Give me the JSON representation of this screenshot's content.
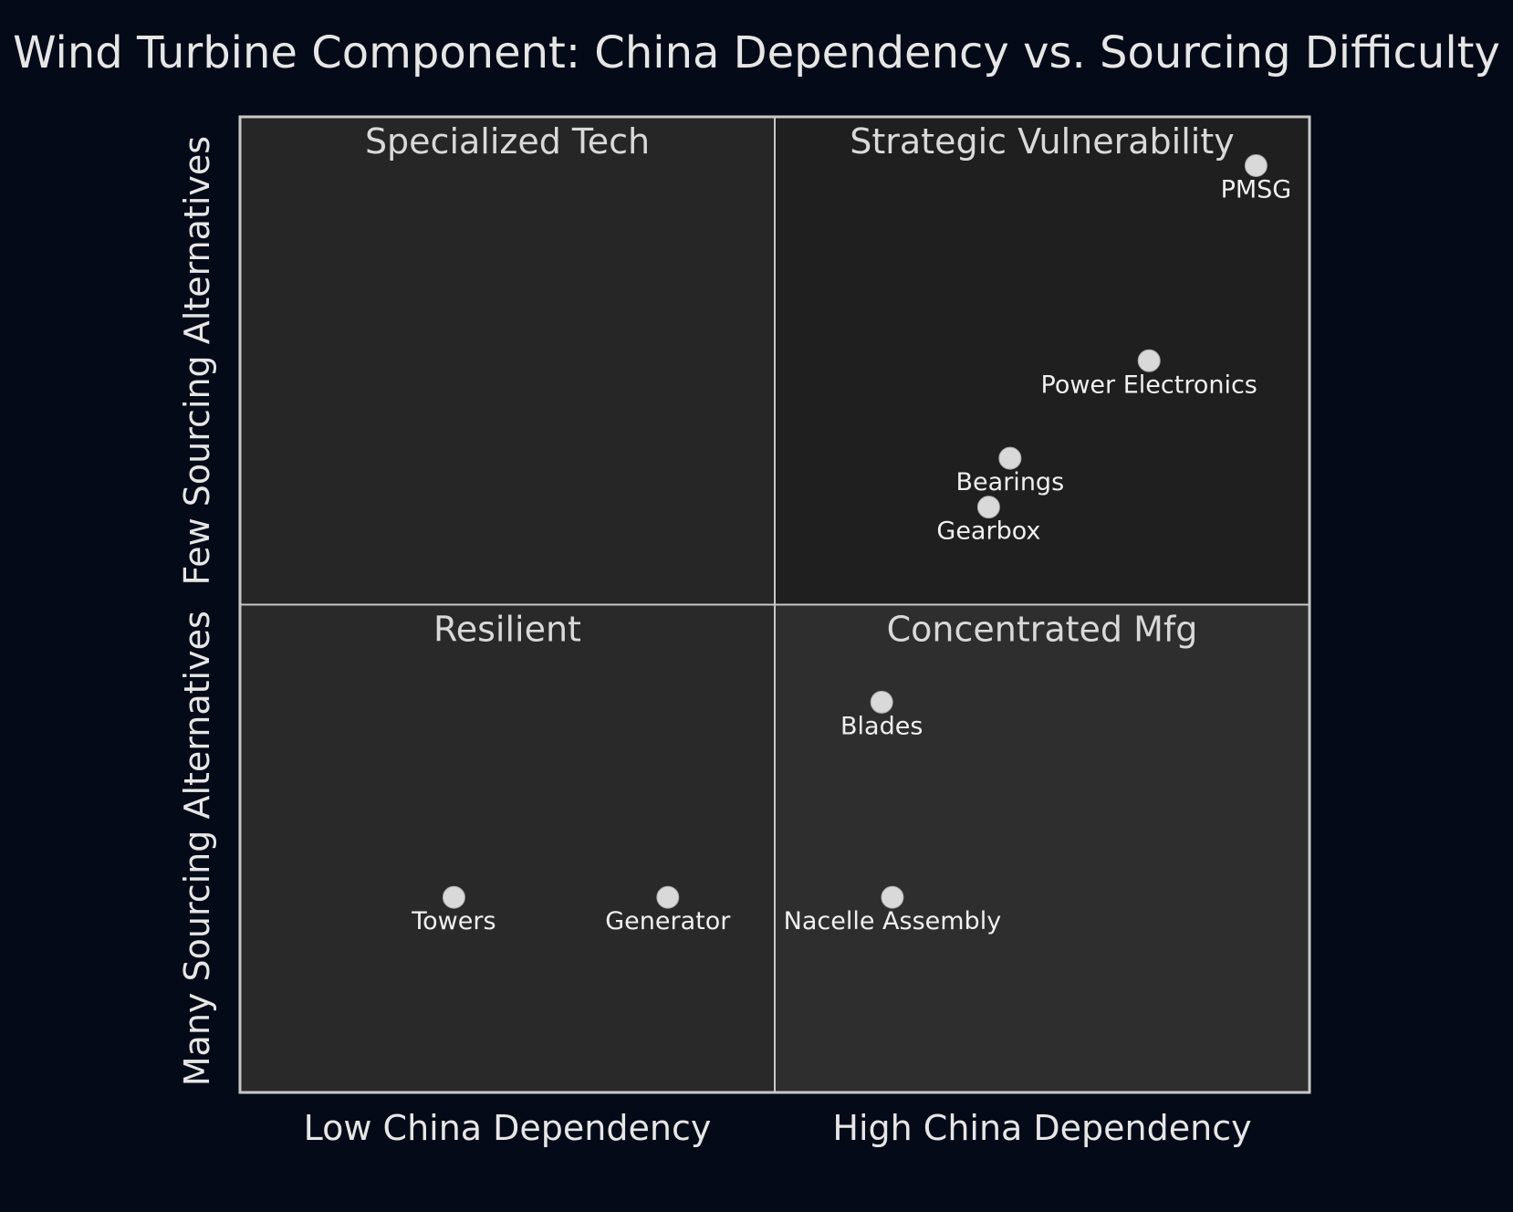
{
  "chart_data": {
    "type": "quadrant",
    "title": "Wind Turbine Component: China Dependency vs. Sourcing Difficulty",
    "x_axis": {
      "left_label": "Low China Dependency",
      "right_label": "High China Dependency",
      "range": [
        0,
        1
      ]
    },
    "y_axis": {
      "bottom_label": "Many Sourcing Alternatives",
      "top_label": "Few Sourcing Alternatives",
      "range": [
        0,
        1
      ]
    },
    "quadrants": {
      "top_left": "Specialized Tech",
      "top_right": "Strategic Vulnerability",
      "bottom_left": "Resilient",
      "bottom_right": "Concentrated Mfg"
    },
    "colors": {
      "top_left": "#262626",
      "top_right": "#1f1f1f",
      "bottom_left": "#292929",
      "bottom_right": "#2e2e2e",
      "border": "#c8c8c8",
      "point": "#d9d9d9"
    },
    "points": [
      {
        "name": "PMSG",
        "x": 0.95,
        "y": 0.95
      },
      {
        "name": "Power Electronics",
        "x": 0.85,
        "y": 0.75
      },
      {
        "name": "Bearings",
        "x": 0.72,
        "y": 0.65
      },
      {
        "name": "Gearbox",
        "x": 0.7,
        "y": 0.6
      },
      {
        "name": "Blades",
        "x": 0.6,
        "y": 0.4
      },
      {
        "name": "Nacelle Assembly",
        "x": 0.61,
        "y": 0.2
      },
      {
        "name": "Towers",
        "x": 0.2,
        "y": 0.2
      },
      {
        "name": "Generator",
        "x": 0.4,
        "y": 0.2
      }
    ]
  }
}
